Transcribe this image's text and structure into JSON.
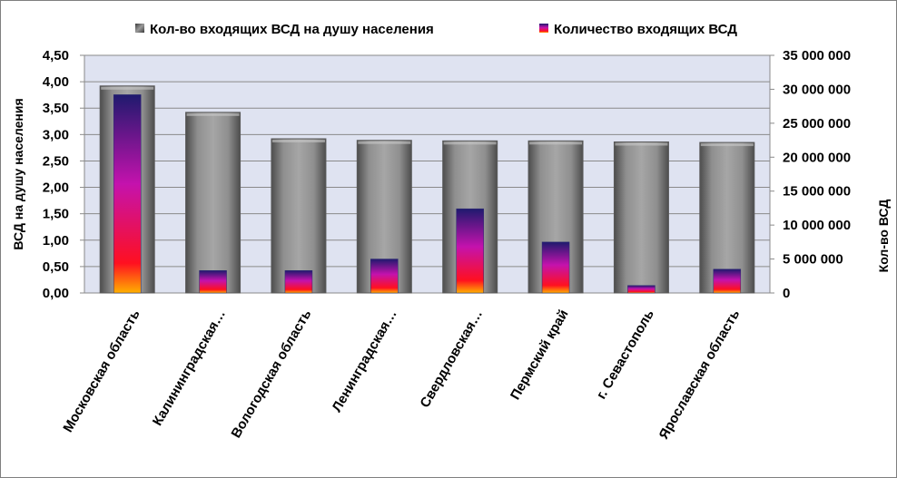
{
  "chart_data": {
    "type": "bar",
    "categories": [
      "Московская область",
      "Калининградская…",
      "Вологодская область",
      "Ленинградская…",
      "Свердловская…",
      "Пермский край",
      "г. Севастополь",
      "Ярославская область"
    ],
    "series": [
      {
        "name": "Кол-во входящих ВСД на душу населения",
        "axis": "left",
        "values": [
          3.92,
          3.42,
          2.92,
          2.89,
          2.88,
          2.88,
          2.86,
          2.85
        ]
      },
      {
        "name": "Количество входящих ВСД",
        "axis": "right",
        "values": [
          29200000,
          3300000,
          3300000,
          5000000,
          12400000,
          7500000,
          1100000,
          3500000
        ]
      }
    ],
    "ylabel": "ВСД на душу населения",
    "y2label": "Кол-во ВСД",
    "ylim": [
      0,
      4.5
    ],
    "y2lim": [
      0,
      35000000
    ],
    "yticks": [
      "0,00",
      "0,50",
      "1,00",
      "1,50",
      "2,00",
      "2,50",
      "3,00",
      "3,50",
      "4,00",
      "4,50"
    ],
    "y2ticks": [
      "0",
      "5 000 000",
      "10 000 000",
      "15 000 000",
      "20 000 000",
      "25 000 000",
      "30 000 000",
      "35 000 000"
    ],
    "grid": true,
    "legend_position": "top",
    "colors": {
      "plot_bg": "#dfe3f1",
      "bar_gray": "#8c8c8c",
      "bar_top": "#1f1a6e",
      "bar_mid": "#c413a8",
      "bar_base": "#ff1010"
    }
  }
}
